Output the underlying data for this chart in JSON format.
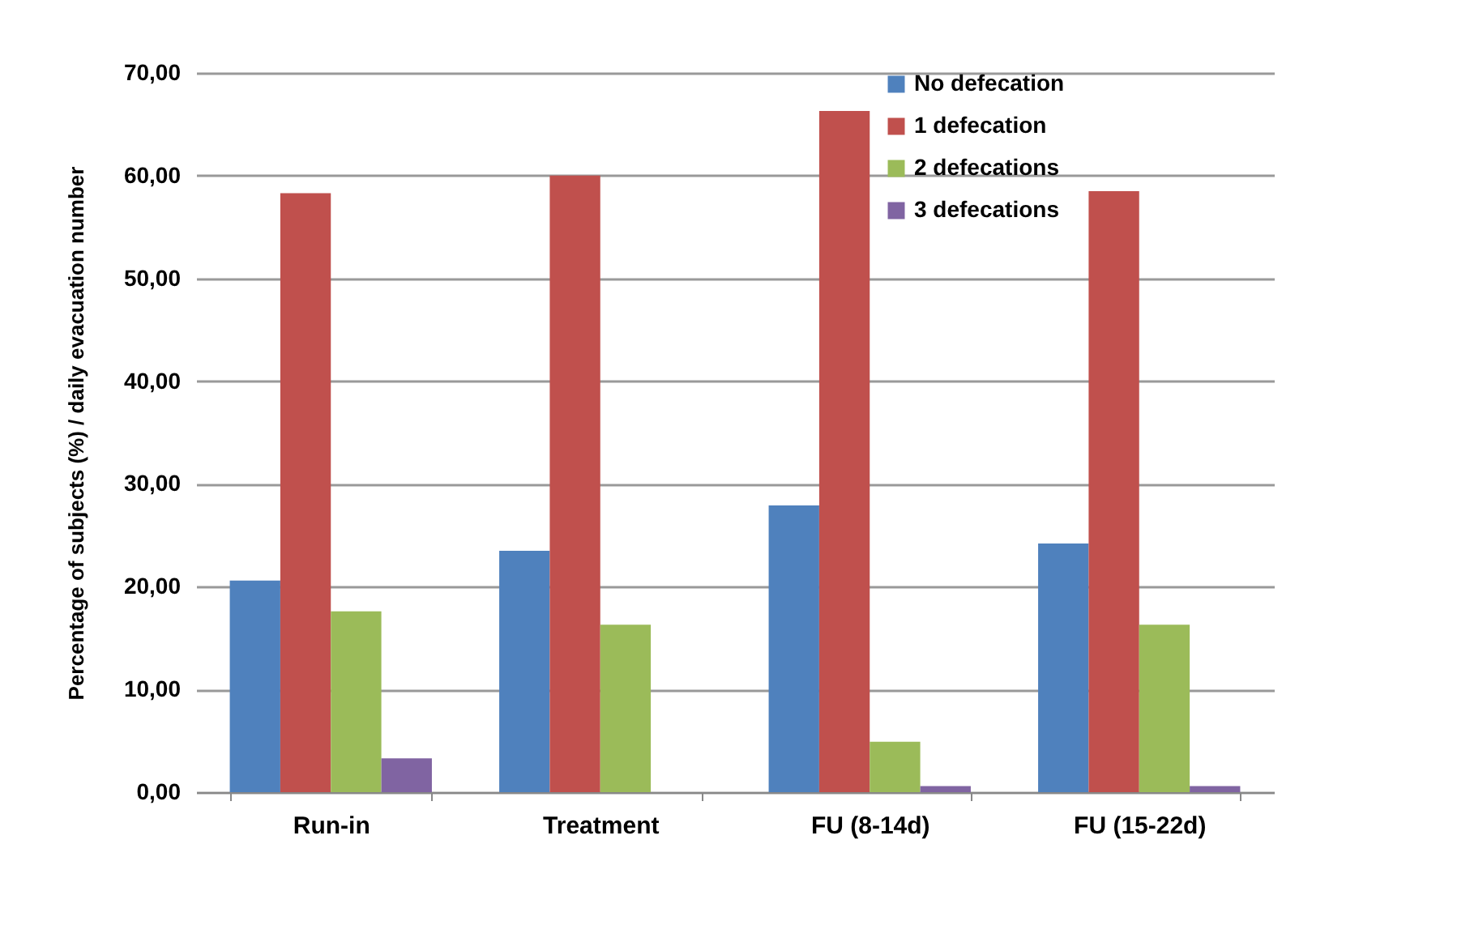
{
  "chart_data": {
    "type": "bar",
    "ylabel": "Percentage of subjects (%) / daily evacuation number",
    "categories": [
      "Run-in",
      "Treatment",
      "FU (8-14d)",
      "FU (15-22d)"
    ],
    "series": [
      {
        "name": "No defecation",
        "color": "#4f81bd",
        "values": [
          20.6,
          23.5,
          27.9,
          24.2
        ]
      },
      {
        "name": "1 defecation",
        "color": "#c0504d",
        "values": [
          58.3,
          60.0,
          66.3,
          58.5
        ]
      },
      {
        "name": "2 defecations",
        "color": "#9bbb59",
        "values": [
          17.6,
          16.3,
          4.9,
          16.3
        ]
      },
      {
        "name": "3 defecations",
        "color": "#8064a2",
        "values": [
          3.3,
          0,
          0.6,
          0.6
        ]
      }
    ],
    "ylim": [
      0,
      70
    ],
    "yticks": [
      {
        "value": 0,
        "label": "0,00"
      },
      {
        "value": 10,
        "label": "10,00"
      },
      {
        "value": 20,
        "label": "20,00"
      },
      {
        "value": 30,
        "label": "30,00"
      },
      {
        "value": 40,
        "label": "40,00"
      },
      {
        "value": 50,
        "label": "50,00"
      },
      {
        "value": 60,
        "label": "60,00"
      },
      {
        "value": 70,
        "label": "70,00"
      }
    ],
    "grid": "y",
    "legend": "top right"
  }
}
